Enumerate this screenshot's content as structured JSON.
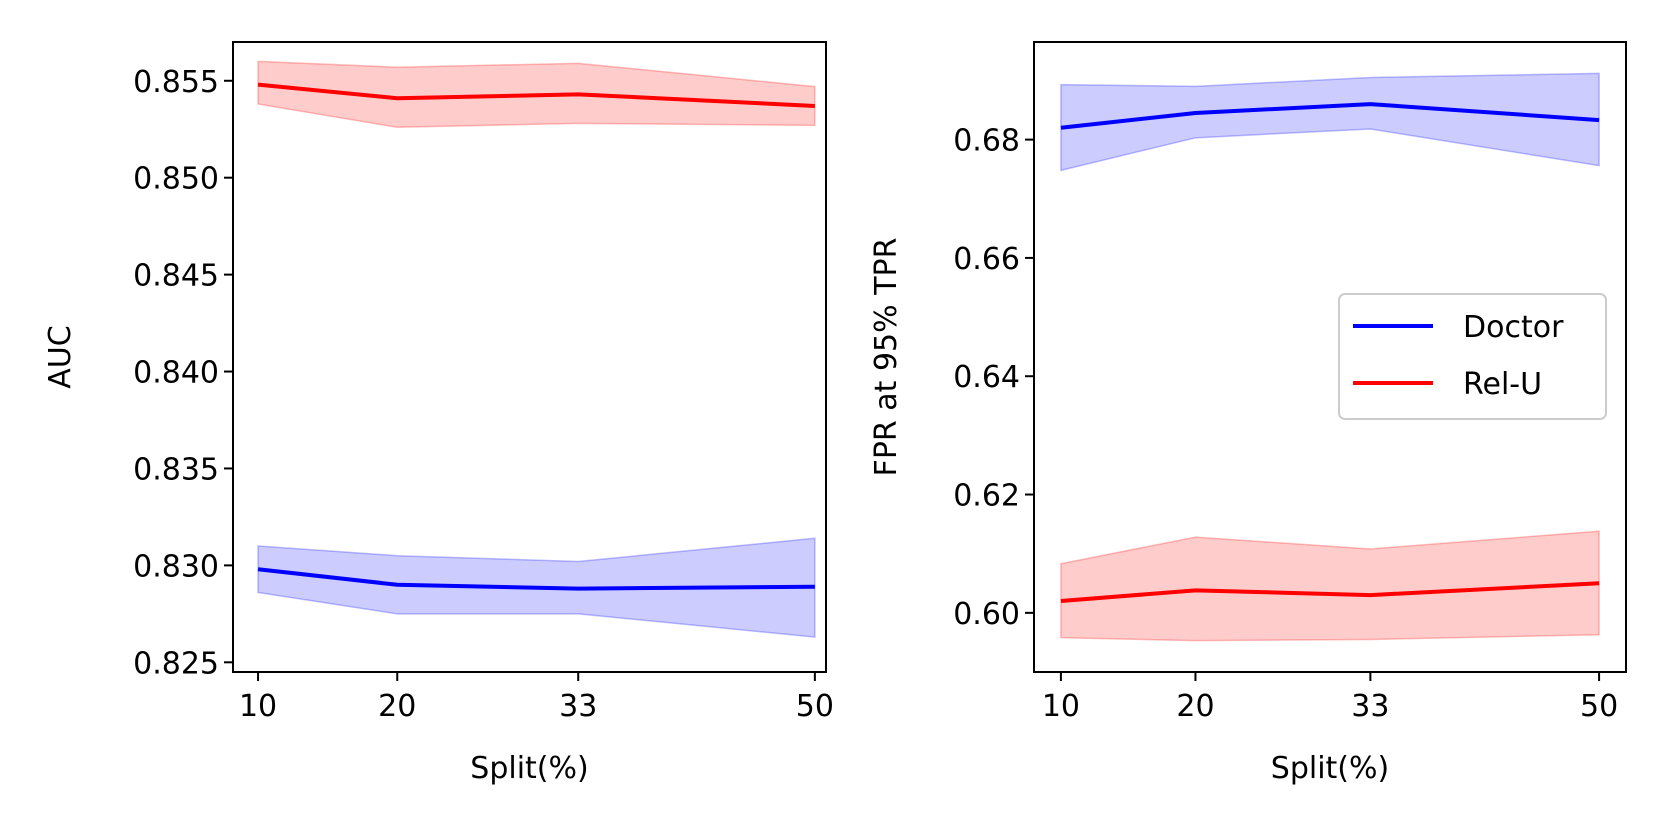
{
  "chart_data": [
    {
      "type": "line",
      "title": "",
      "xlabel": "Split(%)",
      "ylabel": "AUC",
      "x": [
        10,
        20,
        33,
        50
      ],
      "xticks": [
        10,
        20,
        33,
        50
      ],
      "xtick_labels": [
        "10",
        "20",
        "33",
        "50"
      ],
      "xlim": [
        8.2,
        50.8
      ],
      "ylim": [
        0.8245,
        0.857
      ],
      "yticks": [
        0.825,
        0.83,
        0.835,
        0.84,
        0.845,
        0.85,
        0.855
      ],
      "ytick_labels": [
        "0.825",
        "0.830",
        "0.835",
        "0.840",
        "0.845",
        "0.850",
        "0.855"
      ],
      "grid": false,
      "series": [
        {
          "name": "Doctor",
          "color": "#0000ff",
          "values": [
            0.8298,
            0.829,
            0.8288,
            0.8289
          ],
          "lower": [
            0.8286,
            0.8275,
            0.8275,
            0.8263
          ],
          "upper": [
            0.831,
            0.8305,
            0.8302,
            0.8314
          ]
        },
        {
          "name": "Rel-U",
          "color": "#ff0000",
          "values": [
            0.8548,
            0.8541,
            0.8543,
            0.8537
          ],
          "lower": [
            0.8538,
            0.8526,
            0.8528,
            0.8527
          ],
          "upper": [
            0.856,
            0.8557,
            0.8559,
            0.8547
          ]
        }
      ]
    },
    {
      "type": "line",
      "title": "",
      "xlabel": "Split(%)",
      "ylabel": "FPR at 95% TPR",
      "x": [
        10,
        20,
        33,
        50
      ],
      "xticks": [
        10,
        20,
        33,
        50
      ],
      "xtick_labels": [
        "10",
        "20",
        "33",
        "50"
      ],
      "xlim": [
        8.0,
        52.0
      ],
      "ylim": [
        0.59,
        0.6965
      ],
      "yticks": [
        0.6,
        0.62,
        0.64,
        0.66,
        0.68
      ],
      "ytick_labels": [
        "0.60",
        "0.62",
        "0.64",
        "0.66",
        "0.68"
      ],
      "grid": false,
      "legend": {
        "position": "center-right",
        "entries": [
          {
            "label": "Doctor",
            "color": "#0000ff"
          },
          {
            "label": "Rel-U",
            "color": "#ff0000"
          }
        ]
      },
      "series": [
        {
          "name": "Doctor",
          "color": "#0000ff",
          "values": [
            0.682,
            0.6845,
            0.686,
            0.6833
          ],
          "lower": [
            0.6748,
            0.6803,
            0.6818,
            0.6756
          ],
          "upper": [
            0.6893,
            0.689,
            0.6905,
            0.6912
          ]
        },
        {
          "name": "Rel-U",
          "color": "#ff0000",
          "values": [
            0.602,
            0.6038,
            0.603,
            0.605
          ],
          "lower": [
            0.5958,
            0.5953,
            0.5955,
            0.5963
          ],
          "upper": [
            0.6083,
            0.6128,
            0.6108,
            0.6138
          ]
        }
      ]
    }
  ]
}
